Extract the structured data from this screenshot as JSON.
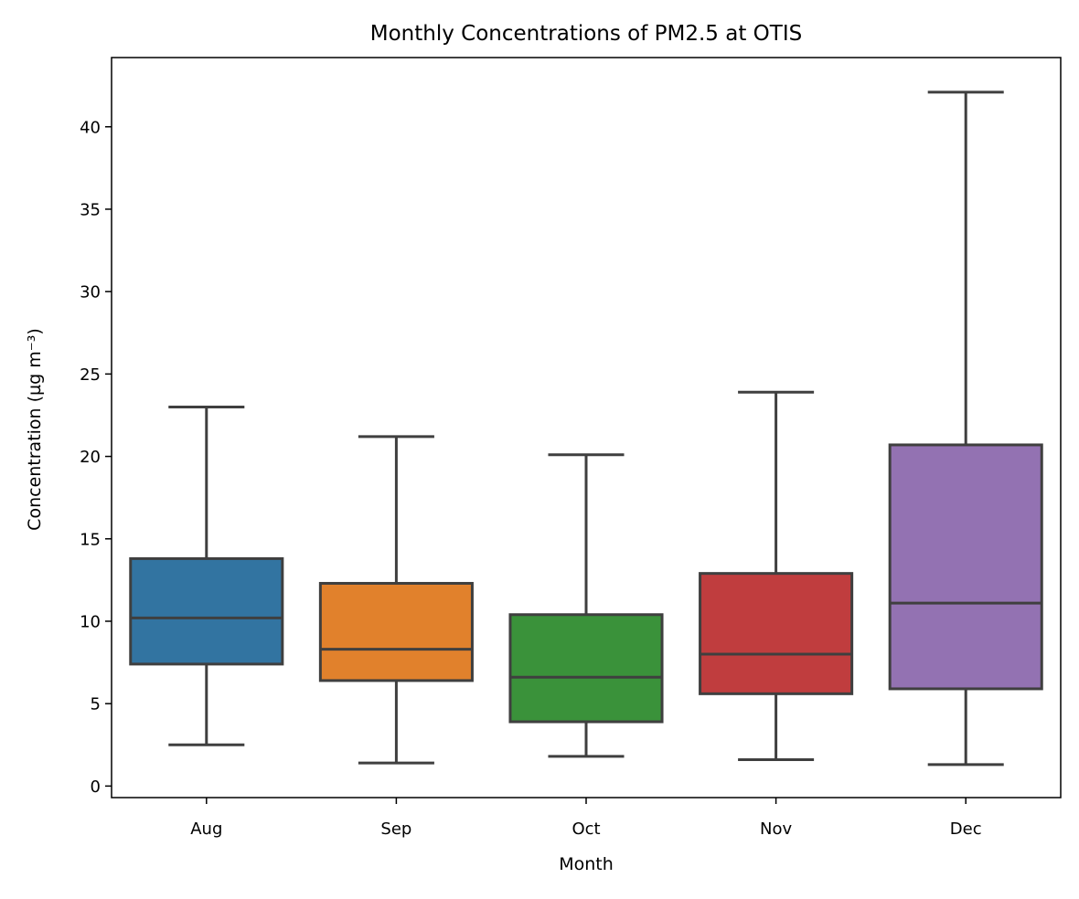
{
  "chart_data": {
    "type": "box",
    "title": "Monthly Concentrations of PM2.5 at OTIS",
    "xlabel": "Month",
    "ylabel": "Concentration (µg m⁻³)",
    "ylim": [
      -0.7,
      44.2
    ],
    "yticks": [
      0,
      5,
      10,
      15,
      20,
      25,
      30,
      35,
      40
    ],
    "categories": [
      "Aug",
      "Sep",
      "Oct",
      "Nov",
      "Dec"
    ],
    "colors": [
      "#3274a1",
      "#e1812c",
      "#3a923a",
      "#c03d3e",
      "#9372b2"
    ],
    "line_color": "#3f3f3f",
    "boxes": [
      {
        "category": "Aug",
        "whisker_low": 2.5,
        "q1": 7.4,
        "median": 10.2,
        "q3": 13.8,
        "whisker_high": 23.0
      },
      {
        "category": "Sep",
        "whisker_low": 1.4,
        "q1": 6.4,
        "median": 8.3,
        "q3": 12.3,
        "whisker_high": 21.2
      },
      {
        "category": "Oct",
        "whisker_low": 1.8,
        "q1": 3.9,
        "median": 6.6,
        "q3": 10.4,
        "whisker_high": 20.1
      },
      {
        "category": "Nov",
        "whisker_low": 1.6,
        "q1": 5.6,
        "median": 8.0,
        "q3": 12.9,
        "whisker_high": 23.9
      },
      {
        "category": "Dec",
        "whisker_low": 1.3,
        "q1": 5.9,
        "median": 11.1,
        "q3": 20.7,
        "whisker_high": 42.1
      }
    ],
    "grid": false,
    "legend": "none"
  }
}
